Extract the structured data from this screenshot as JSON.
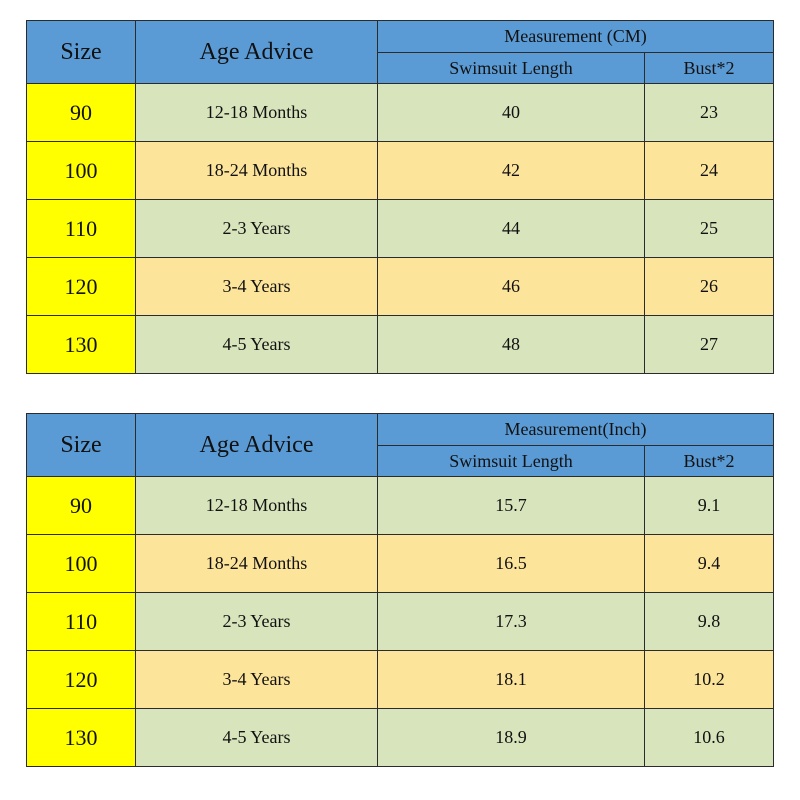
{
  "tables": [
    {
      "headers": {
        "size": "Size",
        "age_advice": "Age Advice",
        "measurement": "Measurement (CM)",
        "length": "Swimsuit Length",
        "bust": "Bust*2"
      },
      "rows": [
        {
          "size": "90",
          "age": "12-18 Months",
          "length": "40",
          "bust": "23"
        },
        {
          "size": "100",
          "age": "18-24 Months",
          "length": "42",
          "bust": "24"
        },
        {
          "size": "110",
          "age": "2-3 Years",
          "length": "44",
          "bust": "25"
        },
        {
          "size": "120",
          "age": "3-4 Years",
          "length": "46",
          "bust": "26"
        },
        {
          "size": "130",
          "age": "4-5 Years",
          "length": "48",
          "bust": "27"
        }
      ]
    },
    {
      "headers": {
        "size": "Size",
        "age_advice": "Age Advice",
        "measurement": "Measurement(Inch)",
        "length": "Swimsuit Length",
        "bust": "Bust*2"
      },
      "rows": [
        {
          "size": "90",
          "age": "12-18 Months",
          "length": "15.7",
          "bust": "9.1"
        },
        {
          "size": "100",
          "age": "18-24 Months",
          "length": "16.5",
          "bust": "9.4"
        },
        {
          "size": "110",
          "age": "2-3 Years",
          "length": "17.3",
          "bust": "9.8"
        },
        {
          "size": "120",
          "age": "3-4 Years",
          "length": "18.1",
          "bust": "10.2"
        },
        {
          "size": "130",
          "age": "4-5 Years",
          "length": "18.9",
          "bust": "10.6"
        }
      ]
    }
  ],
  "colors": {
    "header": "#5b9bd5",
    "size_column": "#ffff00",
    "row_green": "#d8e4bc",
    "row_orange": "#fde49b"
  }
}
